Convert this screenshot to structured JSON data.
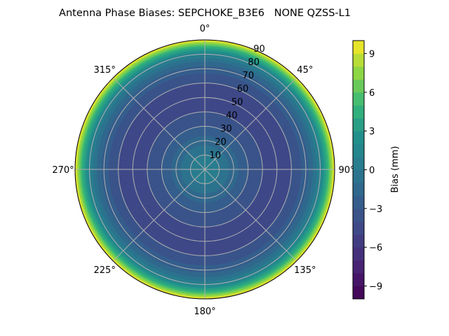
{
  "chart_data": {
    "type": "heatmap",
    "subtype": "polar-contour",
    "title": "Antenna Phase Biases: SEPCHOKE_B3E6   NONE QZSS-L1",
    "angular_ticks": [
      "0°",
      "45°",
      "90°",
      "135°",
      "180°",
      "225°",
      "270°",
      "315°"
    ],
    "radial_ticks": [
      "10",
      "20",
      "30",
      "40",
      "50",
      "60",
      "70",
      "80",
      "90"
    ],
    "radial_range": [
      0,
      90
    ],
    "grid": true,
    "colorbar": {
      "label": "Bias (mm)",
      "range": [
        -10,
        10
      ],
      "level_step": 1,
      "ticks": [
        "−9",
        "−6",
        "−3",
        "0",
        "3",
        "6",
        "9"
      ],
      "tick_values": [
        -9,
        -6,
        -3,
        0,
        3,
        6,
        9
      ],
      "colormap": "viridis",
      "placement": "right"
    },
    "radial_profile": {
      "zenith_deg": [
        0,
        10,
        20,
        30,
        40,
        50,
        60,
        70,
        75,
        80,
        85,
        90
      ],
      "bias_mm": [
        0.5,
        0,
        -1.5,
        -3,
        -4,
        -4.3,
        -4,
        -2.5,
        -1,
        1,
        4.5,
        10
      ]
    }
  }
}
